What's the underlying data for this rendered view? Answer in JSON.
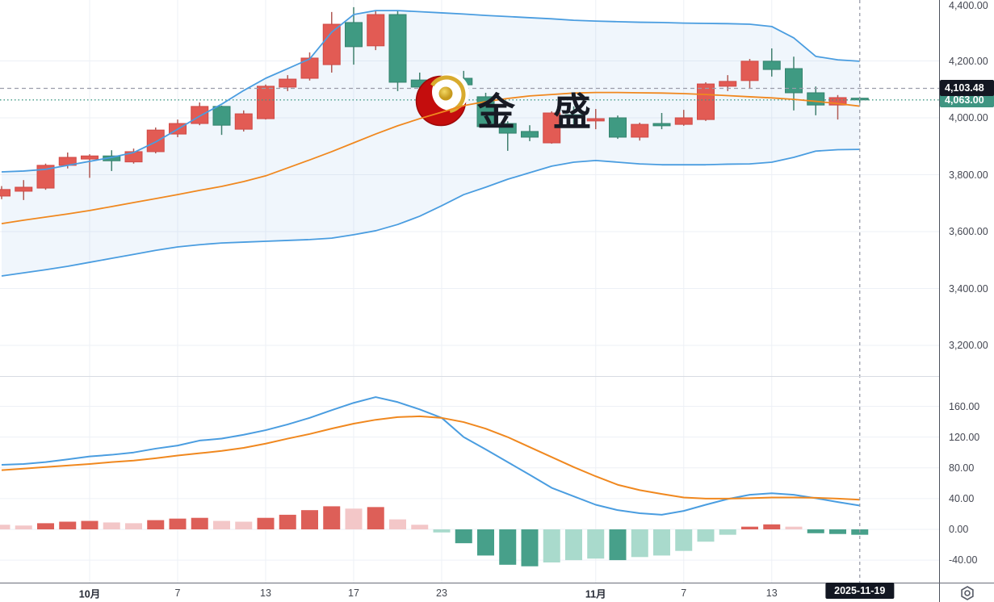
{
  "watermark": {
    "text": "金 盛",
    "logo": "red-crescent-gold-ball-logo"
  },
  "crosshair": {
    "price_label": "4,103.48",
    "price": 4103.48,
    "date_label": "2025-11-19",
    "index": 39
  },
  "last_price": {
    "label": "4,063.00",
    "value": 4063,
    "bg_color": "#3f9582"
  },
  "price_axis": {
    "labels": [
      {
        "text": "4,400.00",
        "price": 4400
      },
      {
        "text": "4,200.00",
        "price": 4200
      },
      {
        "text": "4,000.00",
        "price": 4000
      },
      {
        "text": "3,800.00",
        "price": 3800
      },
      {
        "text": "3,600.00",
        "price": 3600
      },
      {
        "text": "3,400.00",
        "price": 3400
      },
      {
        "text": "3,200.00",
        "price": 3200
      }
    ]
  },
  "indicator_axis": {
    "labels": [
      {
        "text": "160.00",
        "value": 160
      },
      {
        "text": "120.00",
        "value": 120
      },
      {
        "text": "80.00",
        "value": 80
      },
      {
        "text": "40.00",
        "value": 40
      },
      {
        "text": "0.00",
        "value": 0
      },
      {
        "text": "-40.00",
        "value": -40
      }
    ]
  },
  "time_axis": {
    "labels": [
      {
        "text": "10月",
        "index": 4,
        "bold": true
      },
      {
        "text": "7",
        "index": 8,
        "bold": false
      },
      {
        "text": "13",
        "index": 12,
        "bold": false
      },
      {
        "text": "17",
        "index": 16,
        "bold": false
      },
      {
        "text": "23",
        "index": 20,
        "bold": false
      },
      {
        "text": "11月",
        "index": 27,
        "bold": true
      },
      {
        "text": "7",
        "index": 31,
        "bold": false
      },
      {
        "text": "13",
        "index": 35,
        "bold": false
      }
    ]
  },
  "colors": {
    "up_body": "#e25b54",
    "up_border": "#d04a46",
    "up_wick": "#b05a54",
    "down_body": "#3f9a82",
    "down_border": "#35836e",
    "down_wick": "#41806f",
    "bb_band_line": "#4a9de0",
    "bb_mid_line": "#f0881f",
    "band_fill": "rgba(64,145,220,0.08)",
    "macd_fast": "#4a9de0",
    "macd_signal": "#f0881f",
    "hist_pos_dark": "#dd5f58",
    "hist_pos_light": "#f3c7c8",
    "hist_neg_dark": "#47a08a",
    "hist_neg_light": "#a9dacc",
    "grid": "#edf0f6",
    "crosshair": "#9a9daa",
    "last_price_line": "#3f9a85",
    "label_bg_dark": "#131722",
    "label_bg_green": "#3f9582"
  },
  "chart_data": {
    "type": "candlestick_with_bollinger_and_macd",
    "panes": [
      "price",
      "oscillator"
    ],
    "price_axis_range": [
      3150,
      4415
    ],
    "oscillator_axis_range": [
      -70,
      180
    ],
    "num_bars": 40,
    "candles_ohlc": [
      [
        3725,
        3760,
        3714,
        3748
      ],
      [
        3742,
        3781,
        3711,
        3756
      ],
      [
        3753,
        3839,
        3747,
        3833
      ],
      [
        3833,
        3878,
        3822,
        3861
      ],
      [
        3855,
        3872,
        3789,
        3866
      ],
      [
        3866,
        3886,
        3813,
        3849
      ],
      [
        3845,
        3892,
        3839,
        3881
      ],
      [
        3881,
        3966,
        3875,
        3957
      ],
      [
        3943,
        3994,
        3932,
        3980
      ],
      [
        3980,
        4054,
        3974,
        4040
      ],
      [
        4040,
        4043,
        3940,
        3974
      ],
      [
        3960,
        4026,
        3952,
        4014
      ],
      [
        3997,
        4117,
        3994,
        4111
      ],
      [
        4108,
        4150,
        4094,
        4136
      ],
      [
        4139,
        4230,
        4131,
        4210
      ],
      [
        4187,
        4372,
        4159,
        4329
      ],
      [
        4335,
        4389,
        4187,
        4250
      ],
      [
        4253,
        4377,
        4238,
        4363
      ],
      [
        4363,
        4377,
        4094,
        4125
      ],
      [
        4133,
        4159,
        4079,
        4108
      ],
      [
        4108,
        4144,
        4097,
        4136
      ],
      [
        4139,
        4165,
        4102,
        4116
      ],
      [
        4074,
        4088,
        3966,
        3969
      ],
      [
        3980,
        3988,
        3884,
        3946
      ],
      [
        3952,
        3974,
        3918,
        3932
      ],
      [
        3912,
        4023,
        3909,
        4017
      ],
      [
        4011,
        4040,
        3969,
        4006
      ],
      [
        3989,
        4031,
        3960,
        3997
      ],
      [
        4000,
        4008,
        3926,
        3932
      ],
      [
        3932,
        3983,
        3920,
        3977
      ],
      [
        3980,
        4017,
        3960,
        3972
      ],
      [
        3977,
        4028,
        3972,
        4000
      ],
      [
        3994,
        4125,
        3989,
        4119
      ],
      [
        4111,
        4150,
        4094,
        4128
      ],
      [
        4131,
        4207,
        4102,
        4199
      ],
      [
        4199,
        4244,
        4145,
        4170
      ],
      [
        4173,
        4215,
        4026,
        4088
      ],
      [
        4088,
        4110,
        4009,
        4045
      ],
      [
        4045,
        4080,
        3994,
        4071
      ],
      [
        4069,
        4074,
        4052,
        4063
      ]
    ],
    "bollinger": {
      "upper": [
        3810,
        3813,
        3819,
        3833,
        3847,
        3861,
        3878,
        3915,
        3960,
        4006,
        4048,
        4096,
        4139,
        4173,
        4207,
        4301,
        4363,
        4377,
        4377,
        4373,
        4369,
        4365,
        4360,
        4356,
        4352,
        4348,
        4343,
        4340,
        4338,
        4336,
        4335,
        4333,
        4332,
        4331,
        4329,
        4321,
        4281,
        4216,
        4204,
        4199
      ],
      "middle": [
        3628,
        3640,
        3651,
        3662,
        3674,
        3688,
        3702,
        3716,
        3730,
        3745,
        3759,
        3776,
        3796,
        3824,
        3852,
        3881,
        3912,
        3943,
        3972,
        3997,
        4020,
        4043,
        4057,
        4068,
        4077,
        4082,
        4087,
        4089,
        4089,
        4088,
        4087,
        4085,
        4082,
        4078,
        4074,
        4070,
        4065,
        4058,
        4050,
        4041
      ],
      "lower": [
        3444,
        3455,
        3466,
        3478,
        3492,
        3506,
        3520,
        3534,
        3546,
        3554,
        3560,
        3563,
        3566,
        3569,
        3572,
        3577,
        3589,
        3603,
        3625,
        3654,
        3691,
        3730,
        3756,
        3784,
        3807,
        3830,
        3844,
        3850,
        3844,
        3838,
        3835,
        3835,
        3835,
        3837,
        3838,
        3844,
        3861,
        3883,
        3888,
        3889
      ]
    },
    "oscillator": {
      "fast_line": [
        84,
        85,
        87.5,
        91,
        94.8,
        97,
        100,
        105,
        109,
        115.5,
        118,
        123,
        129,
        136.5,
        145,
        155,
        164.5,
        172,
        165.5,
        156,
        145,
        120,
        104,
        87.5,
        71,
        54,
        43,
        32,
        25,
        21,
        19,
        24,
        32,
        39.5,
        45,
        47,
        45,
        40.5,
        35.5,
        31
      ],
      "signal_line": [
        77,
        79,
        81,
        83,
        85,
        87.5,
        89.5,
        92.5,
        96,
        99,
        102,
        106,
        111.5,
        118,
        124,
        131,
        137.5,
        142.5,
        146,
        147,
        145,
        139.5,
        131,
        120,
        107,
        94,
        81,
        69,
        58,
        51,
        46,
        41.5,
        40,
        40,
        40.5,
        41.5,
        41.5,
        41,
        40,
        38.5
      ],
      "histogram": [
        {
          "v": 6,
          "s": "pl"
        },
        {
          "v": 5,
          "s": "pl"
        },
        {
          "v": 8,
          "s": "pd"
        },
        {
          "v": 10,
          "s": "pd"
        },
        {
          "v": 11,
          "s": "pd"
        },
        {
          "v": 9,
          "s": "pl"
        },
        {
          "v": 8,
          "s": "pl"
        },
        {
          "v": 12,
          "s": "pd"
        },
        {
          "v": 14,
          "s": "pd"
        },
        {
          "v": 15,
          "s": "pd"
        },
        {
          "v": 11,
          "s": "pl"
        },
        {
          "v": 10,
          "s": "pl"
        },
        {
          "v": 15,
          "s": "pd"
        },
        {
          "v": 19,
          "s": "pd"
        },
        {
          "v": 25,
          "s": "pd"
        },
        {
          "v": 30,
          "s": "pd"
        },
        {
          "v": 27,
          "s": "pl"
        },
        {
          "v": 29,
          "s": "pd"
        },
        {
          "v": 13,
          "s": "pl"
        },
        {
          "v": 6,
          "s": "pl"
        },
        {
          "v": -4,
          "s": "nl"
        },
        {
          "v": -18,
          "s": "nd"
        },
        {
          "v": -34,
          "s": "nd"
        },
        {
          "v": -46,
          "s": "nd"
        },
        {
          "v": -48,
          "s": "nd"
        },
        {
          "v": -43,
          "s": "nl"
        },
        {
          "v": -40,
          "s": "nl"
        },
        {
          "v": -38,
          "s": "nl"
        },
        {
          "v": -40,
          "s": "nd"
        },
        {
          "v": -36,
          "s": "nl"
        },
        {
          "v": -34,
          "s": "nl"
        },
        {
          "v": -28,
          "s": "nl"
        },
        {
          "v": -16,
          "s": "nl"
        },
        {
          "v": -7,
          "s": "nl"
        },
        {
          "v": 3.5,
          "s": "pd"
        },
        {
          "v": 6.5,
          "s": "pd"
        },
        {
          "v": 3.5,
          "s": "pl"
        },
        {
          "v": -5,
          "s": "nd"
        },
        {
          "v": -6,
          "s": "nd"
        },
        {
          "v": -7,
          "s": "nd"
        }
      ]
    },
    "horizontal_lines": [
      {
        "price": 4103.48,
        "style": "dashed",
        "color": "#9a9daa",
        "label": "4,103.48"
      },
      {
        "price": 4063,
        "style": "dotted",
        "color": "#3f9a85",
        "label": "4,063.00"
      }
    ],
    "grid": true,
    "legend_position": "none"
  }
}
